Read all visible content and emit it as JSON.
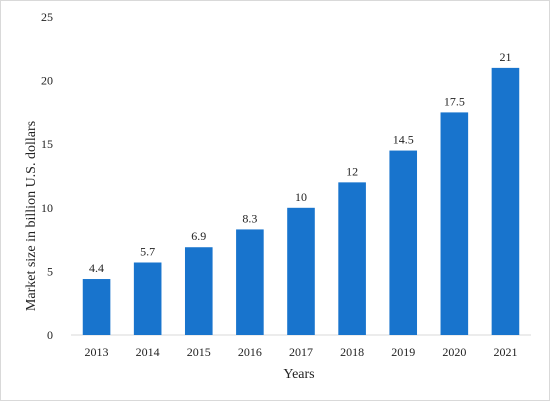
{
  "chart_data": {
    "type": "bar",
    "title": "",
    "xlabel": "Years",
    "ylabel": "Market size in billion U.S. dollars",
    "categories": [
      "2013",
      "2014",
      "2015",
      "2016",
      "2017",
      "2018",
      "2019",
      "2020",
      "2021"
    ],
    "values": [
      4.4,
      5.7,
      6.9,
      8.3,
      10,
      12,
      14.5,
      17.5,
      21
    ],
    "data_labels": [
      "4.4",
      "5.7",
      "6.9",
      "8.3",
      "10",
      "12",
      "14.5",
      "17.5",
      "21"
    ],
    "ylim": [
      0,
      25
    ],
    "yticks": [
      0,
      5,
      10,
      15,
      20,
      25
    ],
    "ytick_labels": [
      "0",
      "5",
      "10",
      "15",
      "20",
      "25"
    ],
    "grid": false,
    "legend": "none",
    "bar_color": "#1874CD",
    "axis_color": "#D9D9D9"
  }
}
